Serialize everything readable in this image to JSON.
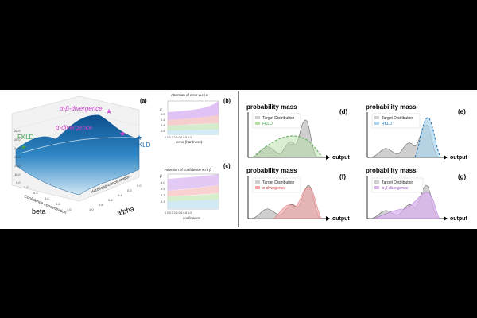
{
  "panel_a": {
    "label": "(a)",
    "ann_ab": "α-β-divergence",
    "ann_a": "α-divergence",
    "ann_fkld": "FKLD",
    "ann_rkld": "RKLD",
    "star": "★",
    "z_ticks": [
      "28.0",
      "26.0",
      "24.0",
      "22.0",
      "20.0",
      "18.0"
    ],
    "beta_ticks": [
      "0.0",
      "0.2",
      "0.4",
      "0.6",
      "0.8",
      "1.0"
    ],
    "alpha_ticks": [
      "1.0",
      "0.8",
      "0.6",
      "0.4",
      "0.2",
      "0.0"
    ],
    "x_label": "Confidence-concentration",
    "y_label": "Hardness-concentration",
    "beta_label": "beta",
    "alpha_label": "alpha"
  },
  "panel_b": {
    "label": "(b)",
    "title": "Attention of error w.r.t α",
    "ylabel": "α",
    "yticks": [
      "0.2",
      "0.4",
      "0.6",
      "0.8"
    ],
    "xticks": "0.0  0.2  0.4  0.6  0.8  1.0",
    "xlabel": "error (hardness)"
  },
  "panel_c": {
    "label": "(c)",
    "title": "Attention of confidence w.r.t β",
    "ylabel": "β",
    "yticks": [
      "1.0",
      "0.5",
      "0.3",
      "0.1"
    ],
    "xticks": "0.0  0.2  0.4  0.6  0.8  1.0",
    "xlabel": "confidence"
  },
  "panel_d": {
    "label": "(d)",
    "ylabel": "probability mass",
    "xlabel": "output",
    "legend": [
      "Target Distribution",
      "FKLD"
    ]
  },
  "panel_e": {
    "label": "(e)",
    "ylabel": "probability mass",
    "xlabel": "output",
    "legend": [
      "Target Distribution",
      "RKLD"
    ]
  },
  "panel_f": {
    "label": "(f)",
    "ylabel": "probability mass",
    "xlabel": "output",
    "legend": [
      "Target Distribution",
      "α-divergence"
    ]
  },
  "panel_g": {
    "label": "(g)",
    "ylabel": "probability mass",
    "xlabel": "output",
    "legend": [
      "Target Distribution",
      "α-β-divergence"
    ]
  },
  "colors": {
    "fkld": "#43a047",
    "rkld": "#1f6fb3",
    "alpha": "#d04848",
    "alpha_beta": "#a05ac8",
    "surface": "#2f86c4"
  }
}
